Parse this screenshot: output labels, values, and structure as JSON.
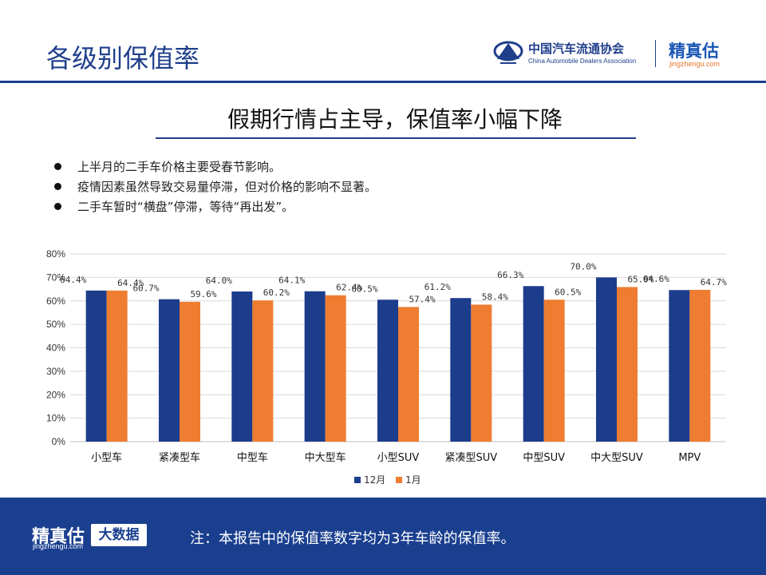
{
  "header": {
    "title": "各级别保值率",
    "brand_cn": "中国汽车流通协会",
    "brand_en": "China Automobile Dealers Association",
    "logo_text": "精真估",
    "logo_url": "jingzhengu.com"
  },
  "headline": "假期行情占主导，保值率小幅下降",
  "bullets": [
    "上半月的二手车价格主要受春节影响。",
    "疫情因素虽然导致交易量停滞，但对价格的影响不显著。",
    "二手车暂时“横盘”停滞，等待“再出发”。"
  ],
  "chart_data": {
    "type": "bar",
    "categories": [
      "小型车",
      "紧凑型车",
      "中型车",
      "中大型车",
      "小型SUV",
      "紧凑型SUV",
      "中型SUV",
      "中大型SUV",
      "MPV"
    ],
    "series": [
      {
        "name": "12月",
        "color": "#1c3c8c",
        "values": [
          64.4,
          60.7,
          64.0,
          64.1,
          60.5,
          61.2,
          66.3,
          70.0,
          64.6
        ],
        "labels": [
          "64.4%",
          "60.7%",
          "64.0%",
          "64.1%",
          "60.5%",
          "61.2%",
          "66.3%",
          "70.0%",
          "64.6%"
        ]
      },
      {
        "name": "1月",
        "color": "#ee7d31",
        "values": [
          64.4,
          59.6,
          60.2,
          62.4,
          57.4,
          58.4,
          60.5,
          65.9,
          64.7
        ],
        "labels": [
          "64.4%",
          "59.6%",
          "60.2%",
          "62.4%",
          "57.4%",
          "58.4%",
          "60.5%",
          "65.9%",
          "64.7%"
        ]
      }
    ],
    "ylim": [
      0,
      80
    ],
    "yticks": [
      "0%",
      "10%",
      "20%",
      "30%",
      "40%",
      "50%",
      "60%",
      "70%",
      "80%"
    ],
    "grid": true,
    "legend_position": "bottom"
  },
  "footer": {
    "logo_text": "精真估",
    "logo_url": "jingzhengu.com",
    "badge": "大数据",
    "note": "注：本报告中的保值率数字均为3年车龄的保值率。"
  }
}
